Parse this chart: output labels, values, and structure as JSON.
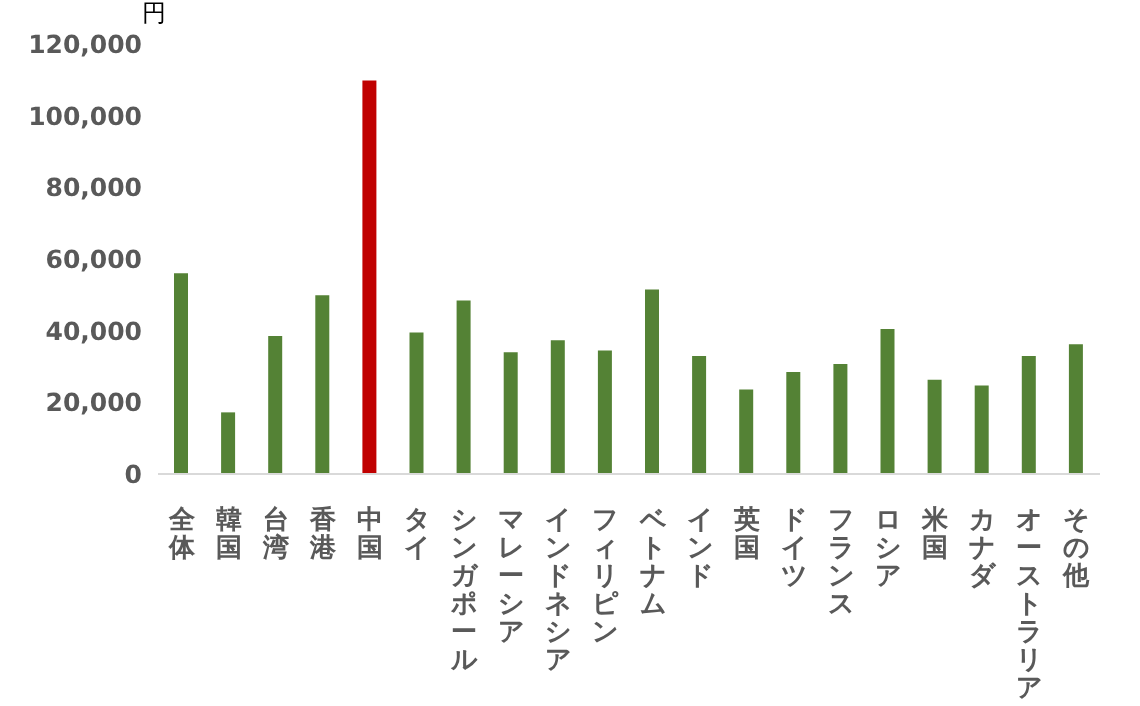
{
  "chart_data": {
    "type": "bar",
    "ylabel": "円",
    "categories": [
      "全体",
      "韓国",
      "台湾",
      "香港",
      "中国",
      "タイ",
      "シンガポール",
      "マレーシア",
      "インドネシア",
      "フィリピン",
      "ベトナム",
      "インド",
      "英国",
      "ドイツ",
      "フランス",
      "ロシア",
      "米国",
      "カナダ",
      "オーストラリア",
      "その他"
    ],
    "values": [
      56000,
      17200,
      38500,
      49900,
      109800,
      39500,
      48400,
      34000,
      37300,
      34500,
      51500,
      32900,
      23600,
      28500,
      30700,
      40500,
      26300,
      24700,
      32900,
      36200
    ],
    "colors": [
      "#548235",
      "#548235",
      "#548235",
      "#548235",
      "#c00000",
      "#548235",
      "#548235",
      "#548235",
      "#548235",
      "#548235",
      "#548235",
      "#548235",
      "#548235",
      "#548235",
      "#548235",
      "#548235",
      "#548235",
      "#548235",
      "#548235",
      "#548235"
    ],
    "ylim": [
      0,
      120000
    ],
    "yticks": [
      0,
      {
        "value": 20000,
        "label": "20,000"
      },
      {
        "value": 40000,
        "label": "40,000"
      },
      {
        "value": 60000,
        "label": "60,000"
      },
      {
        "value": 80000,
        "label": "80,000"
      },
      {
        "value": 100000,
        "label": "100,000"
      },
      {
        "value": 120000,
        "label": "120,000"
      }
    ],
    "grid": false,
    "legend": false
  }
}
